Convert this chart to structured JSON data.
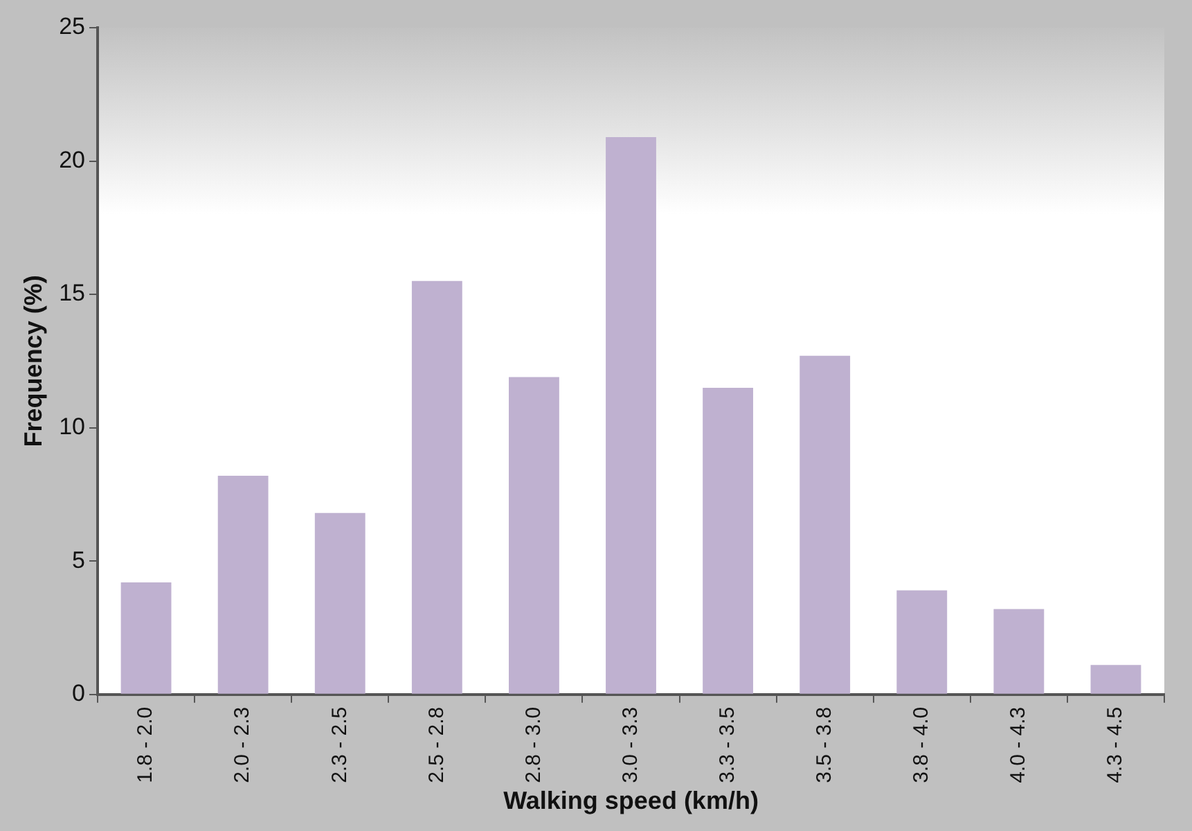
{
  "chart_data": {
    "type": "bar",
    "xlabel": "Walking speed (km/h)",
    "ylabel": "Frequency (%)",
    "categories": [
      "1.8 - 2.0",
      "2.0 - 2.3",
      "2.3 - 2.5",
      "2.5 - 2.8",
      "2.8 - 3.0",
      "3.0 - 3.3",
      "3.3 - 3.5",
      "3.5 - 3.8",
      "3.8 - 4.0",
      "4.0 - 4.3",
      "4.3 - 4.5"
    ],
    "values": [
      4.2,
      8.2,
      6.8,
      15.5,
      11.9,
      20.9,
      11.5,
      12.7,
      3.9,
      3.2,
      1.1
    ],
    "color": "#bfb1d0",
    "ylim": [
      0,
      25
    ],
    "yticks": [
      0,
      5,
      10,
      15,
      20,
      25
    ],
    "grid": false,
    "legend": false
  }
}
